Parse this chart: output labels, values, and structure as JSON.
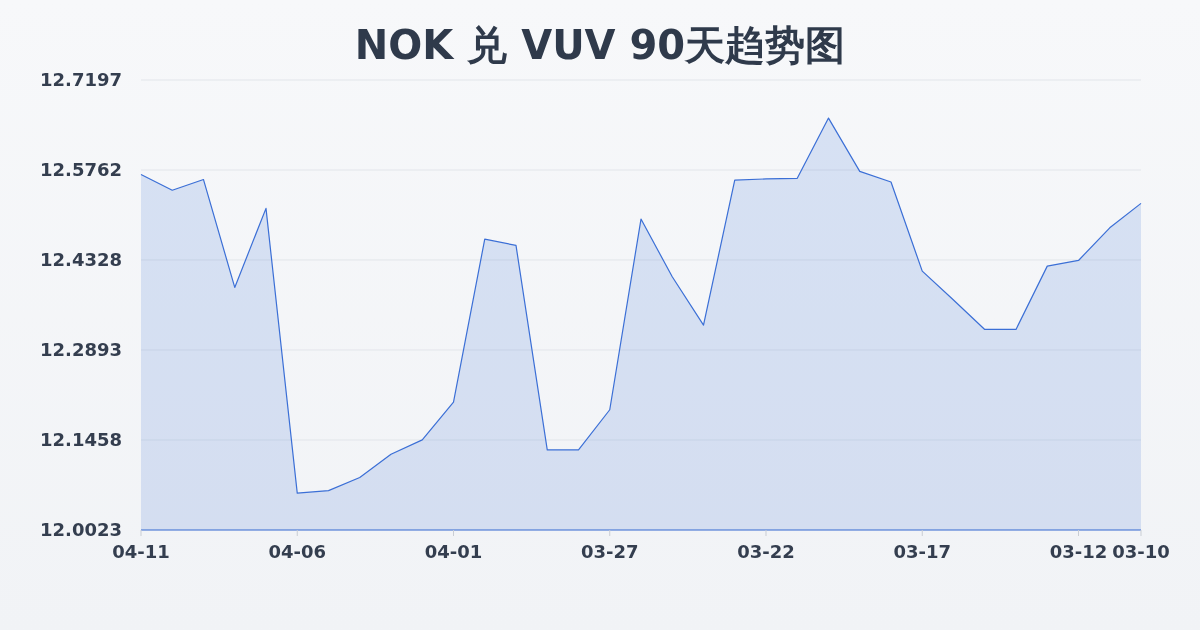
{
  "chart_data": {
    "type": "area",
    "title": "NOK 兑 VUV 90天趋势图",
    "categories": [
      "04-11",
      null,
      null,
      null,
      null,
      "04-06",
      null,
      null,
      null,
      null,
      "04-01",
      null,
      null,
      null,
      null,
      "03-27",
      null,
      null,
      null,
      null,
      "03-22",
      null,
      null,
      null,
      null,
      "03-17",
      null,
      null,
      null,
      null,
      "03-12",
      null,
      "03-10"
    ],
    "values": [
      12.569,
      12.544,
      12.561,
      12.389,
      12.515,
      12.061,
      12.065,
      12.086,
      12.123,
      12.146,
      12.206,
      12.466,
      12.456,
      12.13,
      12.13,
      12.194,
      12.498,
      12.406,
      12.329,
      12.56,
      12.562,
      12.563,
      12.659,
      12.574,
      12.557,
      12.415,
      12.369,
      12.322,
      12.322,
      12.423,
      12.432,
      12.484,
      12.523
    ],
    "color": "#3b6fd6",
    "ylim": [
      12.0023,
      12.7197
    ],
    "yticks": [
      12.0023,
      12.1458,
      12.2893,
      12.4328,
      12.5762,
      12.7197
    ],
    "grid": "y"
  }
}
